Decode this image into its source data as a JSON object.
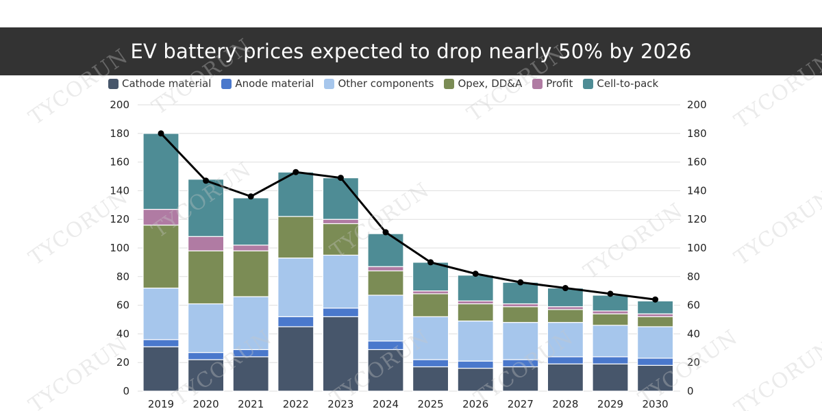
{
  "chart_data": {
    "type": "bar",
    "title": "EV battery prices expected to drop nearly 50% by 2026",
    "xlabel": "",
    "ylabel": "",
    "ylim": [
      0,
      200
    ],
    "yticks": [
      "0",
      "20",
      "40",
      "60",
      "80",
      "100",
      "120",
      "140",
      "160",
      "180",
      "200"
    ],
    "categories": [
      "2019",
      "2020",
      "2021",
      "2022",
      "2023",
      "2024",
      "2025",
      "2026",
      "2027",
      "2028",
      "2029",
      "2030"
    ],
    "stacked": true,
    "grid": true,
    "legend_position": "top",
    "series": [
      {
        "name": "Cathode material",
        "color": "#47566b",
        "values": [
          31,
          22,
          24,
          45,
          52,
          29,
          17,
          16,
          17,
          19,
          19,
          18
        ]
      },
      {
        "name": "Anode material",
        "color": "#4a78cc",
        "values": [
          5,
          5,
          5,
          7,
          6,
          6,
          5,
          5,
          5,
          5,
          5,
          5
        ]
      },
      {
        "name": "Other components",
        "color": "#a6c6ec",
        "values": [
          36,
          34,
          37,
          41,
          37,
          32,
          30,
          28,
          26,
          24,
          22,
          22
        ]
      },
      {
        "name": "Opex, DD&A",
        "color": "#7b8c55",
        "values": [
          44,
          37,
          32,
          29,
          22,
          17,
          16,
          12,
          11,
          9,
          8,
          7
        ]
      },
      {
        "name": "Profit",
        "color": "#b07ba3",
        "values": [
          11,
          10,
          4,
          0,
          3,
          3,
          2,
          2,
          2,
          2,
          2,
          2
        ]
      },
      {
        "name": "Cell-to-pack",
        "color": "#4e8c95",
        "values": [
          53,
          40,
          33,
          31,
          29,
          23,
          20,
          18,
          15,
          13,
          11,
          9
        ]
      }
    ],
    "line": {
      "color": "#000000",
      "values": [
        180,
        147,
        136,
        153,
        149,
        111,
        90,
        82,
        76,
        72,
        68,
        64
      ]
    }
  },
  "watermark": "TYCORUN"
}
